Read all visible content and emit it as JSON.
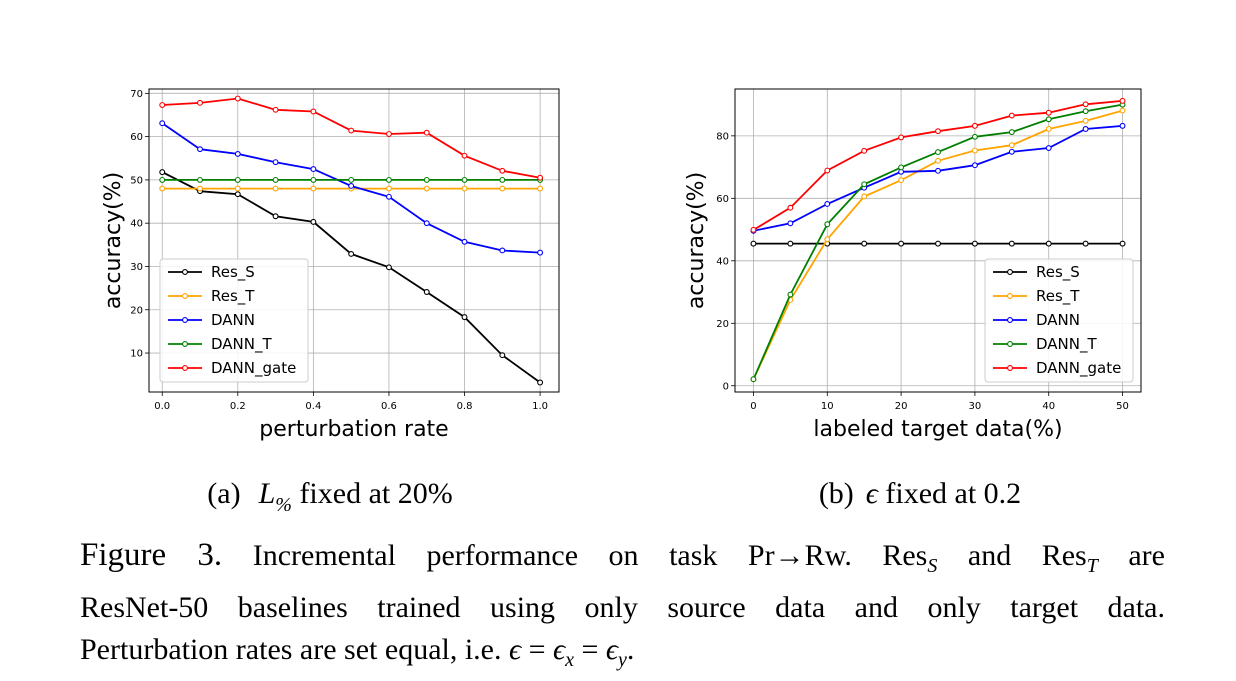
{
  "chart_data": [
    {
      "type": "line",
      "subcaption_tag": "(a)",
      "subcaption_math_base": "L",
      "subcaption_math_sub": "%",
      "subcaption_rest": " fixed at 20%",
      "xlabel": "perturbation rate",
      "ylabel": "accuracy(%)",
      "x": [
        0.0,
        0.1,
        0.2,
        0.3,
        0.4,
        0.5,
        0.6,
        0.7,
        0.8,
        0.9,
        1.0
      ],
      "xlim": [
        -0.035,
        1.05
      ],
      "ylim": [
        1.0,
        71.0
      ],
      "xticks": [
        0.0,
        0.2,
        0.4,
        0.6,
        0.8,
        1.0
      ],
      "xtick_labels": [
        "0.0",
        "0.2",
        "0.4",
        "0.6",
        "0.8",
        "1.0"
      ],
      "yticks": [
        10,
        20,
        30,
        40,
        50,
        60,
        70
      ],
      "ytick_labels": [
        "10",
        "20",
        "30",
        "40",
        "50",
        "60",
        "70"
      ],
      "grid": true,
      "legend_position": "lower-left",
      "series": [
        {
          "name": "Res_S",
          "color": "#000000",
          "values": [
            51.8,
            47.4,
            46.7,
            41.6,
            40.3,
            32.9,
            29.8,
            24.1,
            18.3,
            9.5,
            3.2
          ]
        },
        {
          "name": "Res_T",
          "color": "#ffa500",
          "values": [
            48.0,
            48.0,
            48.0,
            48.0,
            48.0,
            48.0,
            48.0,
            48.0,
            48.0,
            48.0,
            48.0
          ]
        },
        {
          "name": "DANN",
          "color": "#0000ff",
          "values": [
            63.1,
            57.1,
            56.0,
            54.1,
            52.5,
            48.6,
            46.1,
            40.0,
            35.7,
            33.7,
            33.2
          ]
        },
        {
          "name": "DANN_T",
          "color": "#008000",
          "values": [
            50.0,
            50.0,
            50.0,
            50.0,
            50.0,
            50.0,
            50.0,
            50.0,
            50.0,
            50.0,
            50.0
          ]
        },
        {
          "name": "DANN_gate",
          "color": "#ff0000",
          "values": [
            67.3,
            67.8,
            68.8,
            66.2,
            65.8,
            61.4,
            60.6,
            60.9,
            55.6,
            52.1,
            50.5
          ]
        }
      ]
    },
    {
      "type": "line",
      "subcaption_tag": "(b)",
      "subcaption_math_base": "ϵ",
      "subcaption_rest": " fixed at 0.2",
      "xlabel": "labeled target data(%)",
      "ylabel": "accuracy(%)",
      "x": [
        0,
        5,
        10,
        15,
        20,
        25,
        30,
        35,
        40,
        45,
        50
      ],
      "xlim": [
        -2.5,
        52.5
      ],
      "ylim": [
        -2.0,
        95.0
      ],
      "xticks": [
        0,
        10,
        20,
        30,
        40,
        50
      ],
      "xtick_labels": [
        "0",
        "10",
        "20",
        "30",
        "40",
        "50"
      ],
      "yticks": [
        0,
        20,
        40,
        60,
        80
      ],
      "ytick_labels": [
        "0",
        "20",
        "40",
        "60",
        "80"
      ],
      "grid": true,
      "legend_position": "lower-right",
      "series": [
        {
          "name": "Res_S",
          "color": "#000000",
          "values": [
            45.5,
            45.5,
            45.5,
            45.5,
            45.5,
            45.5,
            45.5,
            45.5,
            45.5,
            45.5,
            45.5
          ]
        },
        {
          "name": "Res_T",
          "color": "#ffa500",
          "values": [
            2.1,
            27.5,
            46.9,
            60.6,
            65.8,
            72.0,
            75.3,
            77.0,
            82.2,
            84.8,
            88.1
          ]
        },
        {
          "name": "DANN",
          "color": "#0000ff",
          "values": [
            49.6,
            52.0,
            58.2,
            63.4,
            68.5,
            68.8,
            70.6,
            74.9,
            76.1,
            82.2,
            83.2
          ]
        },
        {
          "name": "DANN_T",
          "color": "#008000",
          "values": [
            2.1,
            29.2,
            51.7,
            64.5,
            69.9,
            74.8,
            79.7,
            81.2,
            85.3,
            87.9,
            90.0
          ]
        },
        {
          "name": "DANN_gate",
          "color": "#ff0000",
          "values": [
            49.9,
            57.0,
            68.9,
            75.2,
            79.5,
            81.5,
            83.2,
            86.5,
            87.4,
            90.1,
            91.2
          ]
        }
      ]
    }
  ],
  "caption": {
    "label": "Figure 3.",
    "seg1": " Incremental performance on task Pr",
    "arrow": "→",
    "seg2": "Rw. Res",
    "sub_s": "S",
    "seg3": " and Res",
    "sub_t": "T",
    "seg4": " are",
    "line2": "ResNet-50 baselines trained using only source data and only target data.",
    "line3_text": "Perturbation rates are set equal, i.e. ",
    "eq_eps": "ϵ",
    "eq_eq": " = ",
    "eq_sub_x": "x",
    "eq_sub_y": "y",
    "eq_end": "."
  }
}
